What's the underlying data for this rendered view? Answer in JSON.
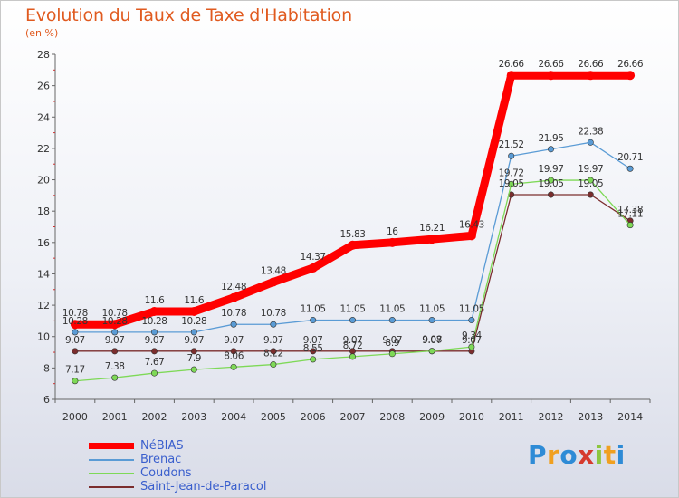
{
  "title": "Evolution du Taux de Taxe d'Habitation",
  "subtitle": "(en %)",
  "brand": {
    "letters": [
      "P",
      "r",
      "o",
      "x",
      "i",
      "t",
      "i"
    ],
    "colors": [
      "#2e8bd6",
      "#f0a020",
      "#2e8bd6",
      "#d63a2e",
      "#8cc63f",
      "#f0a020",
      "#2e8bd6"
    ]
  },
  "chart_data": {
    "type": "line",
    "x": [
      "2000",
      "2001",
      "2002",
      "2003",
      "2004",
      "2005",
      "2006",
      "2007",
      "2008",
      "2009",
      "2010",
      "2011",
      "2012",
      "2013",
      "2014"
    ],
    "ylim": [
      6,
      28
    ],
    "yticks": [
      "6",
      "8",
      "10",
      "12",
      "14",
      "16",
      "18",
      "20",
      "22",
      "24",
      "26",
      "28"
    ],
    "grid": false,
    "legend": "bottom-left",
    "series": [
      {
        "name": "NéBIAS",
        "color": "#ff0000",
        "values": [
          10.78,
          10.78,
          11.6,
          11.6,
          12.48,
          13.48,
          14.37,
          15.83,
          16,
          16.21,
          16.43,
          26.66,
          26.66,
          26.66,
          26.66
        ],
        "labels": [
          "10.78",
          "10.78",
          "11.6",
          "11.6",
          "12.48",
          "13.48",
          "14.37",
          "15.83",
          "16",
          "16.21",
          "16.43",
          "26.66",
          "26.66",
          "26.66",
          "26.66"
        ]
      },
      {
        "name": "Brenac",
        "color": "#5a9bd5",
        "values": [
          10.28,
          10.28,
          10.28,
          10.28,
          10.78,
          10.78,
          11.05,
          11.05,
          11.05,
          11.05,
          11.05,
          21.52,
          21.95,
          22.38,
          20.71
        ],
        "labels": [
          "10.28",
          "10.28",
          "10.28",
          "10.28",
          "10.78",
          "10.78",
          "11.05",
          "11.05",
          "11.05",
          "11.05",
          "11.05",
          "21.52",
          "21.95",
          "22.38",
          "20.71"
        ]
      },
      {
        "name": "Coudons",
        "color": "#7ed957",
        "values": [
          7.17,
          7.38,
          7.67,
          7.9,
          8.06,
          8.22,
          8.55,
          8.72,
          8.9,
          9.08,
          9.34,
          19.72,
          19.97,
          19.97,
          17.11
        ],
        "labels": [
          "7.17",
          "7.38",
          "7.67",
          "7.9",
          "8.06",
          "8.22",
          "8.55",
          "8.72",
          "8.9",
          "9.08",
          "9.34",
          "19.72",
          "19.97",
          "19.97",
          "17.11"
        ]
      },
      {
        "name": "Saint-Jean-de-Paracol",
        "color": "#7b2d2d",
        "values": [
          9.07,
          9.07,
          9.07,
          9.07,
          9.07,
          9.07,
          9.07,
          9.07,
          9.07,
          9.07,
          9.07,
          19.05,
          19.05,
          19.05,
          17.38
        ],
        "labels": [
          "9.07",
          "9.07",
          "9.07",
          "9.07",
          "9.07",
          "9.07",
          "9.07",
          "9.07",
          "9.07",
          "9.07",
          "9.07",
          "19.05",
          "19.05",
          "19.05",
          "17.38"
        ]
      }
    ]
  }
}
